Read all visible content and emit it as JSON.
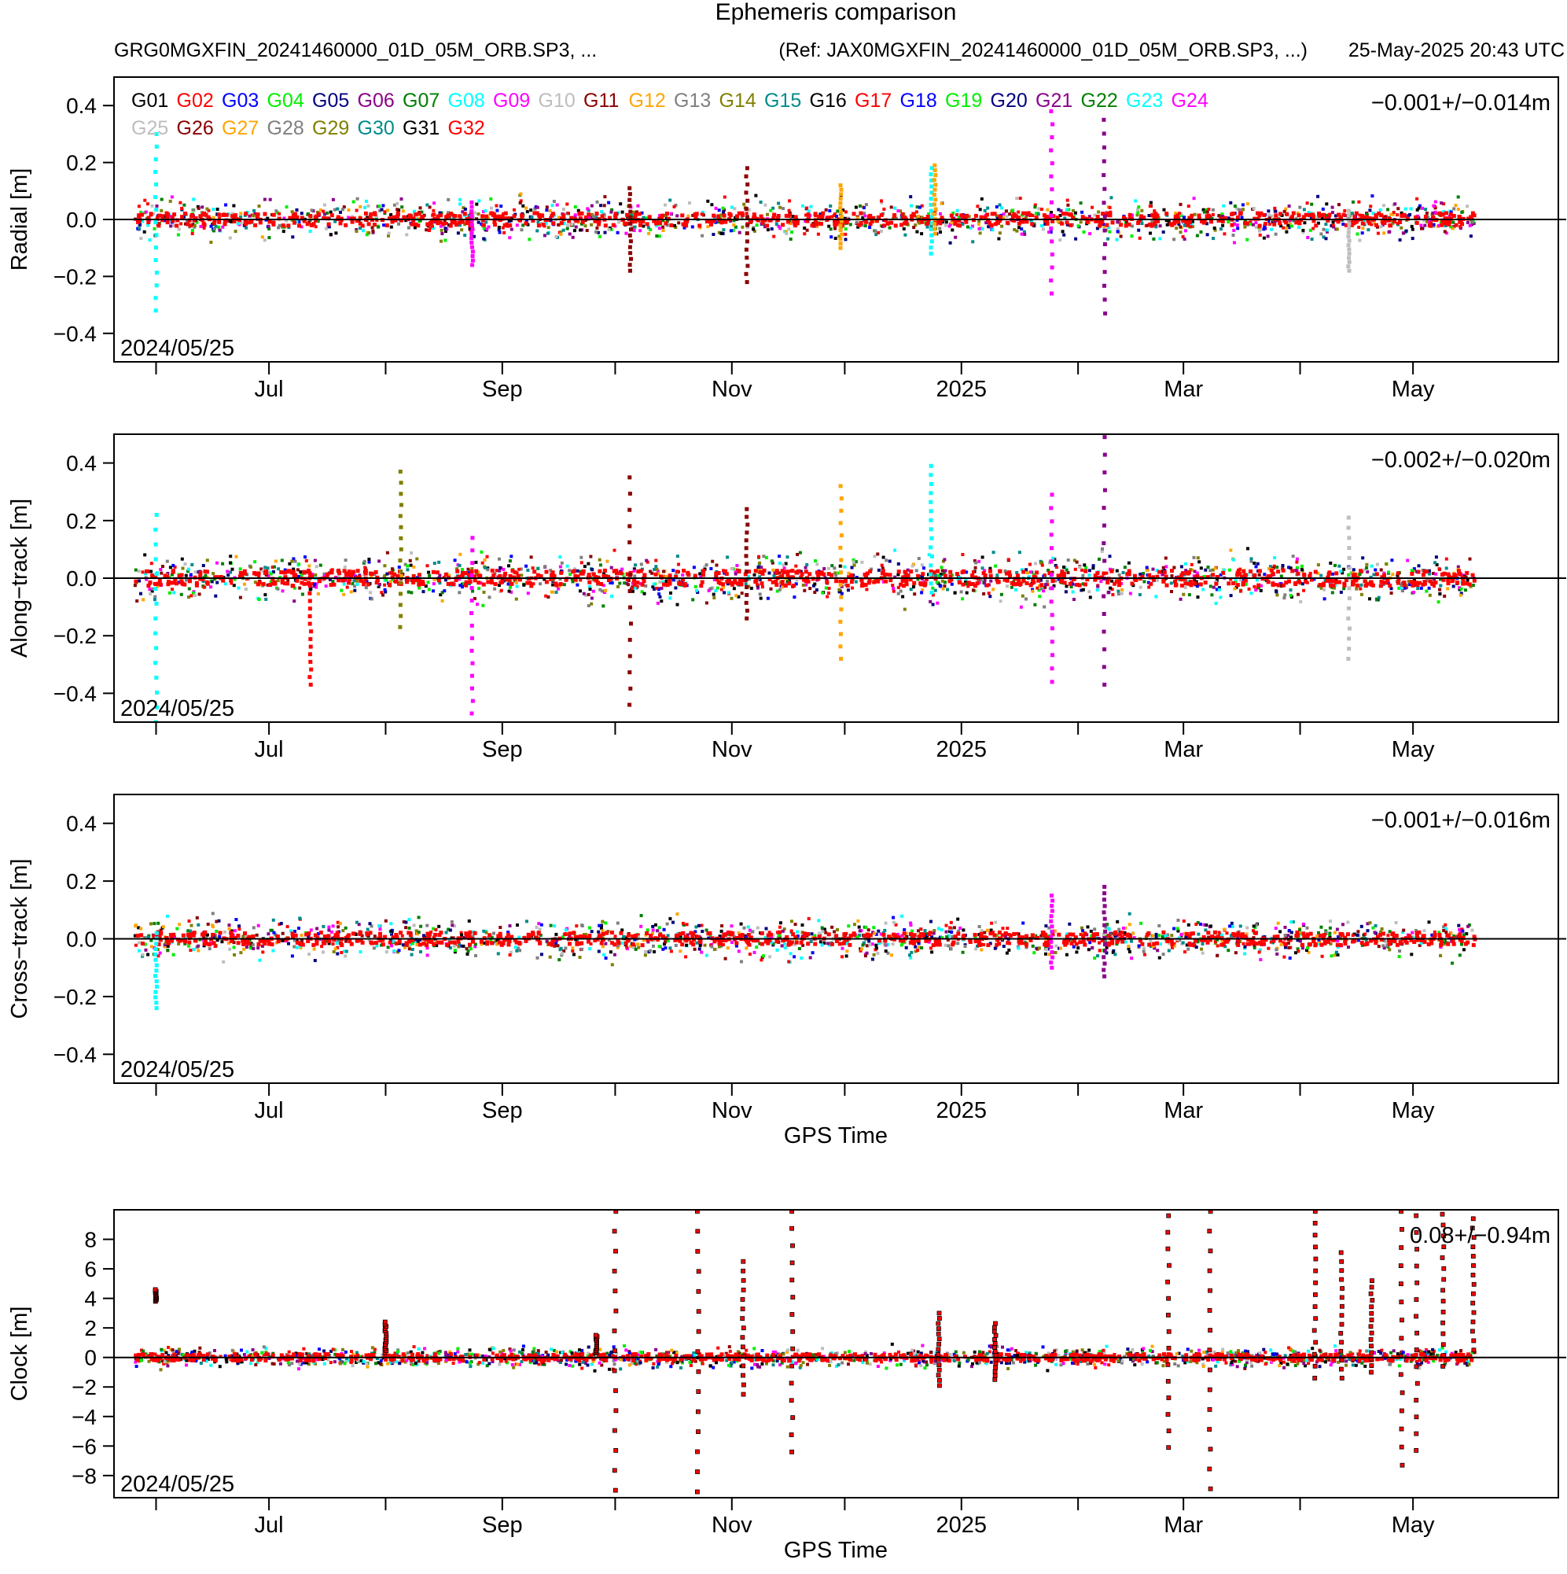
{
  "header": {
    "title": "Ephemeris comparison",
    "file": "GRG0MGXFIN_20241460000_01D_05M_ORB.SP3, ...",
    "ref": "(Ref: JAX0MGXFIN_20241460000_01D_05M_ORB.SP3, ...)",
    "timestamp": "25-May-2025 20:43 UTC"
  },
  "colors": {
    "black": "#000000",
    "red": "#ff0000",
    "blue": "#0000ff",
    "green": "#00ee00",
    "navy": "#000080",
    "purple": "#8b008b",
    "darkgreen": "#008000",
    "cyan": "#00ffff",
    "magenta": "#ff00ff",
    "lightgray": "#bebebe",
    "maroon": "#8b0000",
    "orange": "#ffa500",
    "gray": "#808080",
    "olive": "#808000",
    "teal": "#008b8b"
  },
  "legend": [
    {
      "name": "G01",
      "color": "#000000"
    },
    {
      "name": "G02",
      "color": "#ff0000"
    },
    {
      "name": "G03",
      "color": "#0000ff"
    },
    {
      "name": "G04",
      "color": "#00ee00"
    },
    {
      "name": "G05",
      "color": "#000080"
    },
    {
      "name": "G06",
      "color": "#8b008b"
    },
    {
      "name": "G07",
      "color": "#008000"
    },
    {
      "name": "G08",
      "color": "#00ffff"
    },
    {
      "name": "G09",
      "color": "#ff00ff"
    },
    {
      "name": "G10",
      "color": "#bebebe"
    },
    {
      "name": "G11",
      "color": "#8b0000"
    },
    {
      "name": "G12",
      "color": "#ffa500"
    },
    {
      "name": "G13",
      "color": "#808080"
    },
    {
      "name": "G14",
      "color": "#808000"
    },
    {
      "name": "G15",
      "color": "#008b8b"
    },
    {
      "name": "G16",
      "color": "#000000"
    },
    {
      "name": "G17",
      "color": "#ff0000"
    },
    {
      "name": "G18",
      "color": "#0000ff"
    },
    {
      "name": "G19",
      "color": "#00ee00"
    },
    {
      "name": "G20",
      "color": "#000080"
    },
    {
      "name": "G21",
      "color": "#8b008b"
    },
    {
      "name": "G22",
      "color": "#008000"
    },
    {
      "name": "G23",
      "color": "#00ffff"
    },
    {
      "name": "G24",
      "color": "#ff00ff"
    },
    {
      "name": "G25",
      "color": "#bebebe"
    },
    {
      "name": "G26",
      "color": "#8b0000"
    },
    {
      "name": "G27",
      "color": "#ffa500"
    },
    {
      "name": "G28",
      "color": "#808080"
    },
    {
      "name": "G29",
      "color": "#808000"
    },
    {
      "name": "G30",
      "color": "#008b8b"
    },
    {
      "name": "G31",
      "color": "#000000"
    },
    {
      "name": "G32",
      "color": "#ff0000"
    }
  ],
  "chart_data": [
    {
      "type": "scatter",
      "ylabel": "Radial [m]",
      "xlabel": "",
      "ylim": [
        -0.5,
        0.5
      ],
      "yticks": [
        -0.4,
        -0.2,
        0.0,
        0.2,
        0.4
      ],
      "ytick_labels": [
        "−0.4",
        "−0.2",
        "0.0",
        "0.2",
        "0.4"
      ],
      "xlim": [
        "2024-05-25",
        "2025-05-25"
      ],
      "xtick_labels": [
        "Jul",
        "Sep",
        "Nov",
        "2025",
        "Mar",
        "May"
      ],
      "start_label": "2024/05/25",
      "stat": "−0.001+/−0.014m",
      "base_spread": 0.05,
      "spikes": [
        {
          "date": "2024-06-01",
          "color": "#00ffff",
          "min": -0.32,
          "max": 0.3
        },
        {
          "date": "2024-08-24",
          "color": "#ff00ff",
          "min": -0.16,
          "max": 0.06
        },
        {
          "date": "2024-10-05",
          "color": "#8b0000",
          "min": -0.18,
          "max": 0.11
        },
        {
          "date": "2024-11-05",
          "color": "#8b0000",
          "min": -0.22,
          "max": 0.18
        },
        {
          "date": "2024-11-30",
          "color": "#ffa500",
          "min": -0.1,
          "max": 0.12
        },
        {
          "date": "2024-12-24",
          "color": "#00ffff",
          "min": -0.12,
          "max": 0.18
        },
        {
          "date": "2024-12-25",
          "color": "#ffa500",
          "min": -0.05,
          "max": 0.19
        },
        {
          "date": "2025-01-25",
          "color": "#ff00ff",
          "min": -0.26,
          "max": 0.38
        },
        {
          "date": "2025-02-08",
          "color": "#8b008b",
          "min": -0.33,
          "max": 0.35
        },
        {
          "date": "2025-04-14",
          "color": "#bebebe",
          "min": -0.18,
          "max": 0.03
        }
      ]
    },
    {
      "type": "scatter",
      "ylabel": "Along−track [m]",
      "xlabel": "",
      "ylim": [
        -0.5,
        0.5
      ],
      "yticks": [
        -0.4,
        -0.2,
        0.0,
        0.2,
        0.4
      ],
      "ytick_labels": [
        "−0.4",
        "−0.2",
        "0.0",
        "0.2",
        "0.4"
      ],
      "xlim": [
        "2024-05-25",
        "2025-05-25"
      ],
      "xtick_labels": [
        "Jul",
        "Sep",
        "Nov",
        "2025",
        "Mar",
        "May"
      ],
      "start_label": "2024/05/25",
      "stat": "−0.002+/−0.020m",
      "base_spread": 0.06,
      "spikes": [
        {
          "date": "2024-06-01",
          "color": "#00ffff",
          "min": -0.5,
          "max": 0.22
        },
        {
          "date": "2024-07-12",
          "color": "#ff0000",
          "min": -0.37,
          "max": 0.0
        },
        {
          "date": "2024-08-05",
          "color": "#808000",
          "min": -0.17,
          "max": 0.37
        },
        {
          "date": "2024-08-24",
          "color": "#ff00ff",
          "min": -0.47,
          "max": 0.14
        },
        {
          "date": "2024-10-05",
          "color": "#8b0000",
          "min": -0.44,
          "max": 0.35
        },
        {
          "date": "2024-11-05",
          "color": "#8b0000",
          "min": -0.14,
          "max": 0.24
        },
        {
          "date": "2024-11-30",
          "color": "#ffa500",
          "min": -0.28,
          "max": 0.32
        },
        {
          "date": "2024-12-24",
          "color": "#00ffff",
          "min": -0.05,
          "max": 0.39
        },
        {
          "date": "2025-01-25",
          "color": "#ff00ff",
          "min": -0.36,
          "max": 0.29
        },
        {
          "date": "2025-02-08",
          "color": "#8b008b",
          "min": -0.37,
          "max": 0.49
        },
        {
          "date": "2025-04-14",
          "color": "#bebebe",
          "min": -0.28,
          "max": 0.21
        }
      ]
    },
    {
      "type": "scatter",
      "ylabel": "Cross−track [m]",
      "xlabel": "GPS Time",
      "ylim": [
        -0.5,
        0.5
      ],
      "yticks": [
        -0.4,
        -0.2,
        0.0,
        0.2,
        0.4
      ],
      "ytick_labels": [
        "−0.4",
        "−0.2",
        "0.0",
        "0.2",
        "0.4"
      ],
      "xlim": [
        "2024-05-25",
        "2025-05-25"
      ],
      "xtick_labels": [
        "Jul",
        "Sep",
        "Nov",
        "2025",
        "Mar",
        "May"
      ],
      "start_label": "2024/05/25",
      "stat": "−0.001+/−0.016m",
      "base_spread": 0.05,
      "spikes": [
        {
          "date": "2024-06-01",
          "color": "#00ffff",
          "min": -0.24,
          "max": 0.02
        },
        {
          "date": "2025-01-25",
          "color": "#ff00ff",
          "min": -0.1,
          "max": 0.15
        },
        {
          "date": "2025-02-08",
          "color": "#8b008b",
          "min": -0.13,
          "max": 0.18
        }
      ]
    },
    {
      "type": "scatter",
      "ylabel": "Clock [m]",
      "xlabel": "GPS Time",
      "ylim": [
        -9.5,
        10.0
      ],
      "yticks": [
        -8,
        -6,
        -4,
        -2,
        0,
        2,
        4,
        6,
        8
      ],
      "ytick_labels": [
        "−8",
        "−6",
        "−4",
        "−2",
        "0",
        "2",
        "4",
        "6",
        "8"
      ],
      "xlim": [
        "2024-05-25",
        "2025-05-25"
      ],
      "xtick_labels": [
        "Jul",
        "Sep",
        "Nov",
        "2025",
        "Mar",
        "May"
      ],
      "start_label": "2024/05/25",
      "stat": "0.08+/−0.94m",
      "base_spread": 0.5,
      "spikes": [
        {
          "date": "2024-06-01",
          "color": "#ff0000",
          "min": 3.8,
          "max": 4.6
        },
        {
          "date": "2024-08-01",
          "color": "#ff0000",
          "min": 0.3,
          "max": 2.4
        },
        {
          "date": "2024-09-26",
          "color": "#ff0000",
          "min": 0.3,
          "max": 1.5
        },
        {
          "date": "2024-10-01",
          "color": "#ff0000",
          "min": -9.0,
          "max": 9.9
        },
        {
          "date": "2024-10-23",
          "color": "#ff0000",
          "min": -9.1,
          "max": 9.9
        },
        {
          "date": "2024-11-04",
          "color": "#ff0000",
          "min": -2.5,
          "max": 6.5
        },
        {
          "date": "2024-11-17",
          "color": "#ff0000",
          "min": -6.4,
          "max": 9.9
        },
        {
          "date": "2024-12-26",
          "color": "#ff0000",
          "min": -1.9,
          "max": 3.0
        },
        {
          "date": "2025-01-10",
          "color": "#ff0000",
          "min": -1.5,
          "max": 2.3
        },
        {
          "date": "2025-02-25",
          "color": "#ff0000",
          "min": -6.1,
          "max": 9.6
        },
        {
          "date": "2025-03-08",
          "color": "#ff0000",
          "min": -8.9,
          "max": 9.9
        },
        {
          "date": "2025-04-05",
          "color": "#ff0000",
          "min": -1.4,
          "max": 9.9
        },
        {
          "date": "2025-04-12",
          "color": "#ff0000",
          "min": -1.4,
          "max": 7.1
        },
        {
          "date": "2025-04-20",
          "color": "#ff0000",
          "min": -1.0,
          "max": 5.2
        },
        {
          "date": "2025-04-28",
          "color": "#ff0000",
          "min": -7.3,
          "max": 9.9
        },
        {
          "date": "2025-05-02",
          "color": "#ff0000",
          "min": -6.3,
          "max": 9.6
        },
        {
          "date": "2025-05-09",
          "color": "#ff0000",
          "min": -0.6,
          "max": 9.7
        },
        {
          "date": "2025-05-17",
          "color": "#ff0000",
          "min": 0.5,
          "max": 9.4
        }
      ]
    }
  ]
}
